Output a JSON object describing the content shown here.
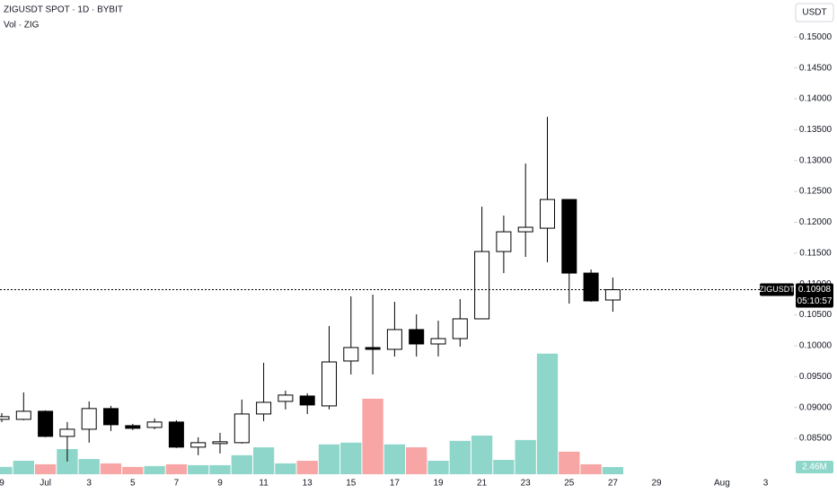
{
  "chart_data": {
    "type": "candlestick",
    "title": "ZIGUSDT SPOT · 1D · BYBIT",
    "subtitle": "Vol · ZIG",
    "currency": "USDT",
    "categories": [
      "9",
      null,
      "Jul",
      null,
      "3",
      null,
      "5",
      null,
      "7",
      null,
      "9",
      null,
      "11",
      null,
      "13",
      null,
      "15",
      null,
      "17",
      null,
      "19",
      null,
      "21",
      null,
      "23",
      null,
      "25",
      null,
      "27",
      null,
      "29",
      null,
      null,
      "Aug",
      null,
      "3"
    ],
    "open": [
      0.08808,
      0.08808,
      0.08939,
      0.08532,
      0.08648,
      0.08983,
      0.08706,
      0.08677,
      0.08765,
      0.08358,
      0.08416,
      0.0843,
      0.08895,
      0.09099,
      0.09186,
      0.09026,
      0.09753,
      0.09971,
      0.09942,
      0.10262,
      0.10029,
      0.10116,
      0.10436,
      0.11526,
      0.11846,
      0.11904,
      0.12369,
      0.11177,
      0.10741,
      null,
      null,
      null,
      null,
      null,
      null,
      null
    ],
    "high": [
      0.0891,
      0.09244,
      0.08954,
      0.08765,
      0.09099,
      0.09026,
      0.08735,
      0.08823,
      0.08794,
      0.08518,
      0.0859,
      0.09128,
      0.09724,
      0.09273,
      0.0923,
      0.1032,
      0.10799,
      0.10828,
      0.10712,
      0.10509,
      0.10407,
      0.10756,
      0.12253,
      0.12108,
      0.12951,
      0.13707,
      0.12369,
      0.11235,
      0.11105,
      null,
      null,
      null,
      null,
      null,
      null,
      null
    ],
    "low": [
      0.08765,
      0.08794,
      0.08518,
      0.08125,
      0.0843,
      0.08619,
      0.08634,
      0.08648,
      0.08343,
      0.08227,
      0.08256,
      0.08416,
      0.08779,
      0.08968,
      0.08895,
      0.08968,
      0.09535,
      0.09535,
      0.09826,
      0.09826,
      0.09826,
      0.09985,
      0.10451,
      0.11177,
      0.11439,
      0.11352,
      0.10683,
      0.10712,
      0.10552,
      null,
      null,
      null,
      null,
      null,
      null,
      null
    ],
    "close": [
      0.08852,
      0.08939,
      0.08532,
      0.08648,
      0.08983,
      0.08721,
      0.08663,
      0.08765,
      0.08358,
      0.0843,
      0.08445,
      0.08895,
      0.09084,
      0.09201,
      0.09041,
      0.09738,
      0.09971,
      0.09942,
      0.10262,
      0.10029,
      0.10116,
      0.10436,
      0.11526,
      0.11846,
      0.11919,
      0.12369,
      0.11177,
      0.10727,
      0.10908,
      null,
      null,
      null,
      null,
      null,
      null,
      null
    ],
    "up_color": "#ffffff",
    "down_color": "#000000",
    "volume": {
      "values": [
        2.5,
        4.6,
        3.4,
        8.6,
        5.2,
        3.7,
        2.5,
        2.8,
        3.4,
        3.1,
        3.1,
        6.5,
        9.2,
        3.7,
        4.6,
        10.2,
        10.8,
        25.8,
        10.2,
        9.2,
        4.6,
        11.4,
        13.2,
        4.9,
        11.7,
        41.2,
        7.7,
        3.4,
        2.46,
        null,
        null,
        null,
        null,
        null,
        null,
        null
      ],
      "value_labels": [
        null,
        null,
        null,
        null,
        null,
        null,
        null,
        null,
        null,
        null,
        null,
        null,
        null,
        null,
        null,
        null,
        null,
        null,
        null,
        null,
        null,
        null,
        null,
        null,
        null,
        null,
        null,
        null,
        "2.46M",
        null,
        null,
        null,
        null,
        null,
        null,
        null
      ],
      "up_color": "#8fd6ca",
      "down_color": "#f8a5a5",
      "ylim": [
        0,
        162
      ]
    },
    "ylim": [
      0.0789,
      0.156
    ],
    "yticks": [
      {
        "value": 0.085,
        "label": "0.08500"
      },
      {
        "value": 0.09,
        "label": "0.09000"
      },
      {
        "value": 0.095,
        "label": "0.09500"
      },
      {
        "value": 0.1,
        "label": "0.10000"
      },
      {
        "value": 0.105,
        "label": "0.10500"
      },
      {
        "value": 0.11,
        "label": "0.11000"
      },
      {
        "value": 0.115,
        "label": "0.11500"
      },
      {
        "value": 0.12,
        "label": "0.12000"
      },
      {
        "value": 0.125,
        "label": "0.12500"
      },
      {
        "value": 0.13,
        "label": "0.13000"
      },
      {
        "value": 0.135,
        "label": "0.13500"
      },
      {
        "value": 0.14,
        "label": "0.14000"
      },
      {
        "value": 0.145,
        "label": "0.14500"
      },
      {
        "value": 0.15,
        "label": "0.15000"
      }
    ],
    "grid": false,
    "last_price": {
      "value": 0.10908,
      "label": "0.10908"
    },
    "countdown": "05:10:57",
    "symbol_tag": "ZIGUSDT"
  }
}
